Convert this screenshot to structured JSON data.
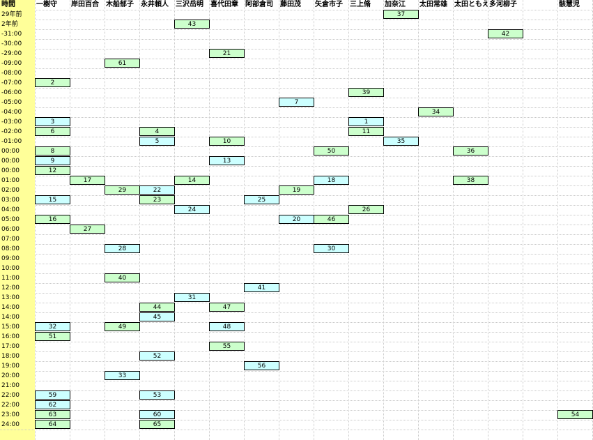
{
  "headers": [
    "時間",
    "一樹守",
    "岸田百合",
    "木船郁子",
    "永井頼人",
    "三沢岳明",
    "喜代田章",
    "阿部倉司",
    "藤田茂",
    "矢倉市子",
    "三上脩",
    "加奈江",
    "太田常雄",
    "太田ともえ",
    "多河柳子",
    "",
    "骸慧児"
  ],
  "times": [
    "29年前",
    "2年前",
    "-31:00",
    "-30:00",
    "-29:00",
    "-09:00",
    "-08:00",
    "-07:00",
    "-06:00",
    "-05:00",
    "-04:00",
    "-03:00",
    "-02:00",
    "-01:00",
    "00:00",
    "00:00",
    "00:00",
    "01:00",
    "02:00",
    "03:00",
    "04:00",
    "05:00",
    "06:00",
    "07:00",
    "08:00",
    "09:00",
    "10:00",
    "11:00",
    "12:00",
    "13:00",
    "14:00",
    "14:00",
    "15:00",
    "16:00",
    "17:00",
    "18:00",
    "19:00",
    "20:00",
    "21:00",
    "22:00",
    "22:00",
    "23:00",
    "24:00"
  ],
  "colors": {
    "green": "#ccffcc",
    "blue": "#ccffff",
    "time_column": "#ffff99"
  },
  "cells": [
    {
      "row": 0,
      "col": 11,
      "value": "37",
      "color": "green"
    },
    {
      "row": 1,
      "col": 5,
      "value": "43",
      "color": "green"
    },
    {
      "row": 2,
      "col": 14,
      "value": "42",
      "color": "green"
    },
    {
      "row": 4,
      "col": 6,
      "value": "21",
      "color": "green"
    },
    {
      "row": 5,
      "col": 3,
      "value": "61",
      "color": "green"
    },
    {
      "row": 7,
      "col": 1,
      "value": "2",
      "color": "green"
    },
    {
      "row": 8,
      "col": 10,
      "value": "39",
      "color": "green"
    },
    {
      "row": 9,
      "col": 8,
      "value": "7",
      "color": "blue"
    },
    {
      "row": 10,
      "col": 12,
      "value": "34",
      "color": "green"
    },
    {
      "row": 11,
      "col": 1,
      "value": "3",
      "color": "blue"
    },
    {
      "row": 11,
      "col": 10,
      "value": "1",
      "color": "blue"
    },
    {
      "row": 12,
      "col": 1,
      "value": "6",
      "color": "green"
    },
    {
      "row": 12,
      "col": 4,
      "value": "4",
      "color": "green"
    },
    {
      "row": 12,
      "col": 10,
      "value": "11",
      "color": "green"
    },
    {
      "row": 13,
      "col": 4,
      "value": "5",
      "color": "blue"
    },
    {
      "row": 13,
      "col": 6,
      "value": "10",
      "color": "green"
    },
    {
      "row": 13,
      "col": 11,
      "value": "35",
      "color": "blue"
    },
    {
      "row": 14,
      "col": 1,
      "value": "8",
      "color": "green"
    },
    {
      "row": 14,
      "col": 9,
      "value": "50",
      "color": "green"
    },
    {
      "row": 14,
      "col": 13,
      "value": "36",
      "color": "green"
    },
    {
      "row": 15,
      "col": 1,
      "value": "9",
      "color": "blue"
    },
    {
      "row": 15,
      "col": 6,
      "value": "13",
      "color": "blue"
    },
    {
      "row": 16,
      "col": 1,
      "value": "12",
      "color": "green"
    },
    {
      "row": 17,
      "col": 2,
      "value": "17",
      "color": "green"
    },
    {
      "row": 17,
      "col": 5,
      "value": "14",
      "color": "green"
    },
    {
      "row": 17,
      "col": 9,
      "value": "18",
      "color": "blue"
    },
    {
      "row": 17,
      "col": 13,
      "value": "38",
      "color": "green"
    },
    {
      "row": 18,
      "col": 3,
      "value": "29",
      "color": "green"
    },
    {
      "row": 18,
      "col": 4,
      "value": "22",
      "color": "blue"
    },
    {
      "row": 18,
      "col": 8,
      "value": "19",
      "color": "green"
    },
    {
      "row": 19,
      "col": 1,
      "value": "15",
      "color": "blue"
    },
    {
      "row": 19,
      "col": 4,
      "value": "23",
      "color": "green"
    },
    {
      "row": 19,
      "col": 7,
      "value": "25",
      "color": "blue"
    },
    {
      "row": 20,
      "col": 5,
      "value": "24",
      "color": "blue"
    },
    {
      "row": 20,
      "col": 10,
      "value": "26",
      "color": "green"
    },
    {
      "row": 21,
      "col": 1,
      "value": "16",
      "color": "green"
    },
    {
      "row": 21,
      "col": 8,
      "value": "20",
      "color": "blue"
    },
    {
      "row": 21,
      "col": 9,
      "value": "46",
      "color": "green"
    },
    {
      "row": 22,
      "col": 2,
      "value": "27",
      "color": "green"
    },
    {
      "row": 24,
      "col": 3,
      "value": "28",
      "color": "blue"
    },
    {
      "row": 24,
      "col": 9,
      "value": "30",
      "color": "blue"
    },
    {
      "row": 27,
      "col": 3,
      "value": "40",
      "color": "green"
    },
    {
      "row": 28,
      "col": 7,
      "value": "41",
      "color": "blue"
    },
    {
      "row": 29,
      "col": 5,
      "value": "31",
      "color": "blue"
    },
    {
      "row": 30,
      "col": 4,
      "value": "44",
      "color": "green"
    },
    {
      "row": 30,
      "col": 6,
      "value": "47",
      "color": "green"
    },
    {
      "row": 31,
      "col": 4,
      "value": "45",
      "color": "blue"
    },
    {
      "row": 32,
      "col": 1,
      "value": "32",
      "color": "blue"
    },
    {
      "row": 32,
      "col": 3,
      "value": "49",
      "color": "green"
    },
    {
      "row": 32,
      "col": 6,
      "value": "48",
      "color": "blue"
    },
    {
      "row": 33,
      "col": 1,
      "value": "51",
      "color": "green"
    },
    {
      "row": 34,
      "col": 6,
      "value": "55",
      "color": "green"
    },
    {
      "row": 35,
      "col": 4,
      "value": "52",
      "color": "blue"
    },
    {
      "row": 36,
      "col": 7,
      "value": "56",
      "color": "blue"
    },
    {
      "row": 37,
      "col": 3,
      "value": "33",
      "color": "blue"
    },
    {
      "row": 39,
      "col": 1,
      "value": "59",
      "color": "blue"
    },
    {
      "row": 39,
      "col": 4,
      "value": "53",
      "color": "blue"
    },
    {
      "row": 40,
      "col": 1,
      "value": "62",
      "color": "blue"
    },
    {
      "row": 41,
      "col": 1,
      "value": "63",
      "color": "green"
    },
    {
      "row": 41,
      "col": 4,
      "value": "60",
      "color": "blue"
    },
    {
      "row": 41,
      "col": 16,
      "value": "54",
      "color": "green"
    },
    {
      "row": 42,
      "col": 1,
      "value": "64",
      "color": "green"
    },
    {
      "row": 42,
      "col": 4,
      "value": "65",
      "color": "green"
    }
  ]
}
